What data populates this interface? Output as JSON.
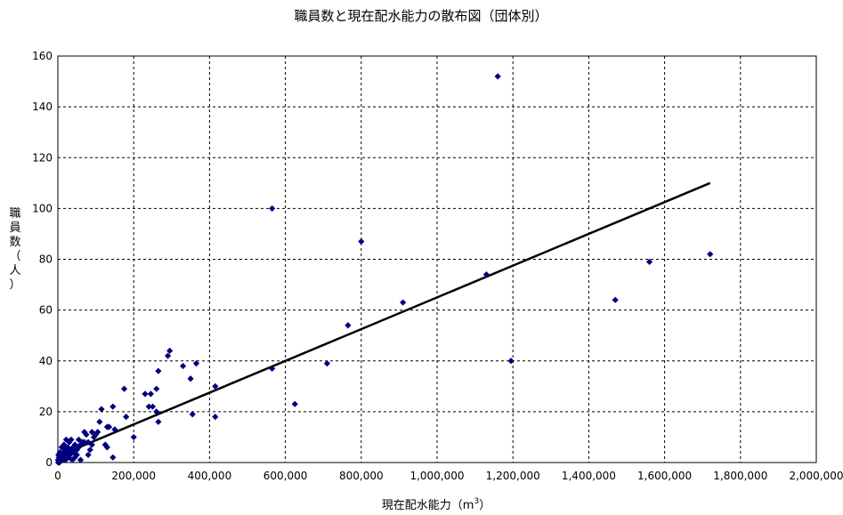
{
  "chart_data": {
    "type": "scatter",
    "title": "職員数と現在配水能力の散布図（団体別）",
    "xlabel": "現在配水能力（m",
    "xlabel_sup": "3",
    "xlabel_close": "）",
    "ylabel_chars": [
      "職",
      "員",
      "数",
      "（",
      "人",
      "）"
    ],
    "xlim": [
      0,
      2000000
    ],
    "ylim": [
      0,
      160
    ],
    "x_ticks": [
      0,
      200000,
      400000,
      600000,
      800000,
      1000000,
      1200000,
      1400000,
      1600000,
      1800000,
      2000000
    ],
    "x_tick_labels": [
      "0",
      "200,000",
      "400,000",
      "600,000",
      "800,000",
      "1,000,000",
      "1,200,000",
      "1,400,000",
      "1,600,000",
      "1,800,000",
      "2,000,000"
    ],
    "y_ticks": [
      0,
      20,
      40,
      60,
      80,
      100,
      120,
      140,
      160
    ],
    "y_tick_labels": [
      "0",
      "20",
      "40",
      "60",
      "80",
      "100",
      "120",
      "140",
      "160"
    ],
    "grid": true,
    "legend": false,
    "marker_color": "#000080",
    "trendline": {
      "x": [
        0,
        1720000
      ],
      "y": [
        2.5,
        110
      ]
    },
    "points": [
      [
        1160000,
        152
      ],
      [
        565000,
        100
      ],
      [
        800000,
        87
      ],
      [
        1720000,
        82
      ],
      [
        1560000,
        79
      ],
      [
        1130000,
        74
      ],
      [
        1470000,
        64
      ],
      [
        910000,
        63
      ],
      [
        765000,
        54
      ],
      [
        1195000,
        40
      ],
      [
        710000,
        39
      ],
      [
        565000,
        37
      ],
      [
        625000,
        23
      ],
      [
        415000,
        30
      ],
      [
        415000,
        18
      ],
      [
        365000,
        39
      ],
      [
        330000,
        38
      ],
      [
        350000,
        33
      ],
      [
        355000,
        19
      ],
      [
        295000,
        44
      ],
      [
        290000,
        42
      ],
      [
        265000,
        36
      ],
      [
        260000,
        29
      ],
      [
        230000,
        27
      ],
      [
        245000,
        27
      ],
      [
        250000,
        22
      ],
      [
        240000,
        22
      ],
      [
        260000,
        20
      ],
      [
        265000,
        16
      ],
      [
        200000,
        10
      ],
      [
        180000,
        18
      ],
      [
        175000,
        29
      ],
      [
        145000,
        22
      ],
      [
        150000,
        13
      ],
      [
        145000,
        2
      ],
      [
        135000,
        14
      ],
      [
        130000,
        14
      ],
      [
        125000,
        7
      ],
      [
        130000,
        6
      ],
      [
        115000,
        21
      ],
      [
        110000,
        16
      ],
      [
        105000,
        12
      ],
      [
        100000,
        11
      ],
      [
        90000,
        12
      ],
      [
        95000,
        10
      ],
      [
        90000,
        7
      ],
      [
        80000,
        8
      ],
      [
        85000,
        5
      ],
      [
        80000,
        3
      ],
      [
        75000,
        11
      ],
      [
        70000,
        12
      ],
      [
        70000,
        8
      ],
      [
        65000,
        8
      ],
      [
        60000,
        7
      ],
      [
        60000,
        1
      ],
      [
        55000,
        6
      ],
      [
        50000,
        5
      ],
      [
        50000,
        3
      ],
      [
        45000,
        2
      ],
      [
        45000,
        7
      ],
      [
        40000,
        6
      ],
      [
        40000,
        4
      ],
      [
        38000,
        1
      ],
      [
        35000,
        5
      ],
      [
        35000,
        9
      ],
      [
        32000,
        3
      ],
      [
        30000,
        8
      ],
      [
        28000,
        2
      ],
      [
        26000,
        6
      ],
      [
        25000,
        4
      ],
      [
        22000,
        9
      ],
      [
        20000,
        1
      ],
      [
        20000,
        5
      ],
      [
        18000,
        3
      ],
      [
        16000,
        7
      ],
      [
        15000,
        2
      ],
      [
        14000,
        4
      ],
      [
        12000,
        1
      ],
      [
        10000,
        3
      ],
      [
        10000,
        6
      ],
      [
        8000,
        2
      ],
      [
        6000,
        1
      ],
      [
        5000,
        4
      ],
      [
        4000,
        0
      ],
      [
        3000,
        2
      ],
      [
        2000,
        1
      ],
      [
        1500,
        3
      ],
      [
        1000,
        0
      ],
      [
        500,
        1
      ],
      [
        55000,
        9
      ]
    ]
  }
}
